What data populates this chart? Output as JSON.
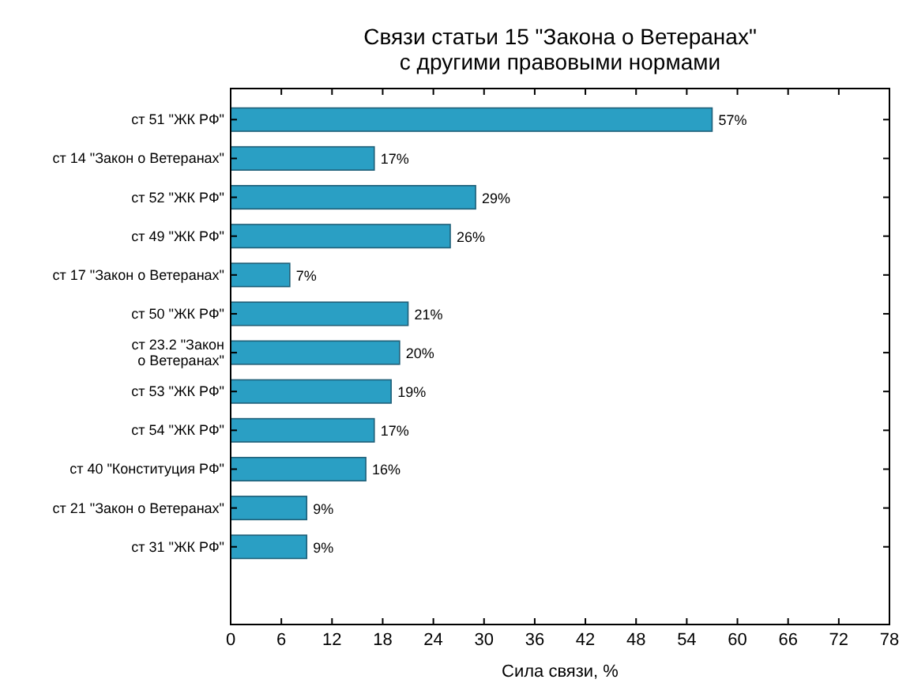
{
  "chart_data": {
    "type": "bar",
    "orientation": "horizontal",
    "title": "Связи статьи 15 \"Закона о Ветеранах\"\nс другими правовыми нормами",
    "xlabel": "Сила связи, %",
    "categories": [
      "ст 51 \"ЖК РФ\"",
      "ст 14 \"Закон о Ветеранах\"",
      "ст 52 \"ЖК РФ\"",
      "ст 49 \"ЖК РФ\"",
      "ст 17 \"Закон о Ветеранах\"",
      "ст 50 \"ЖК РФ\"",
      "ст 23.2 \"Закон\nо Ветеранах\"",
      "ст 53 \"ЖК РФ\"",
      "ст 54 \"ЖК РФ\"",
      "ст 40 \"Конституция РФ\"",
      "ст 21 \"Закон о Ветеранах\"",
      "ст 31 \"ЖК РФ\""
    ],
    "values": [
      57,
      17,
      29,
      26,
      7,
      21,
      20,
      19,
      17,
      16,
      9,
      9
    ],
    "value_labels": [
      "57%",
      "17%",
      "29%",
      "26%",
      "7%",
      "21%",
      "20%",
      "19%",
      "17%",
      "16%",
      "9%",
      "9%"
    ],
    "color": "#2a9fc4",
    "xlim": [
      0,
      78
    ],
    "xticks": [
      0,
      6,
      12,
      18,
      24,
      30,
      36,
      42,
      48,
      54,
      60,
      66,
      72,
      78
    ],
    "grid": false
  }
}
